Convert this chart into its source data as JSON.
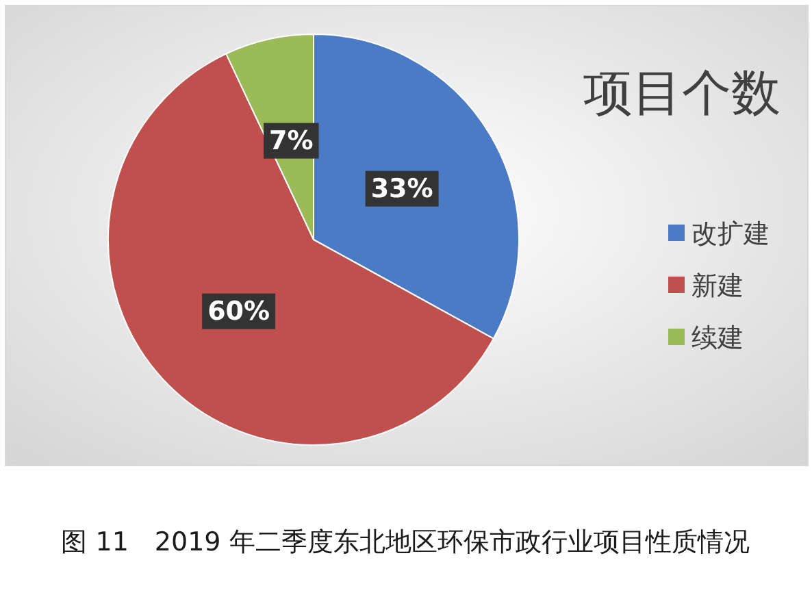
{
  "chart_data": {
    "type": "pie",
    "title": "项目个数",
    "categories": [
      "改扩建",
      "新建",
      "续建"
    ],
    "values": [
      33,
      60,
      7
    ],
    "value_labels": [
      "33%",
      "60%",
      "7%"
    ],
    "colors": [
      "#4a7bc4",
      "#c0504d",
      "#9bbb59"
    ],
    "legend": "right",
    "annotations": [
      "图 11　2019 年二季度东北地区环保市政行业项目性质情况"
    ]
  }
}
